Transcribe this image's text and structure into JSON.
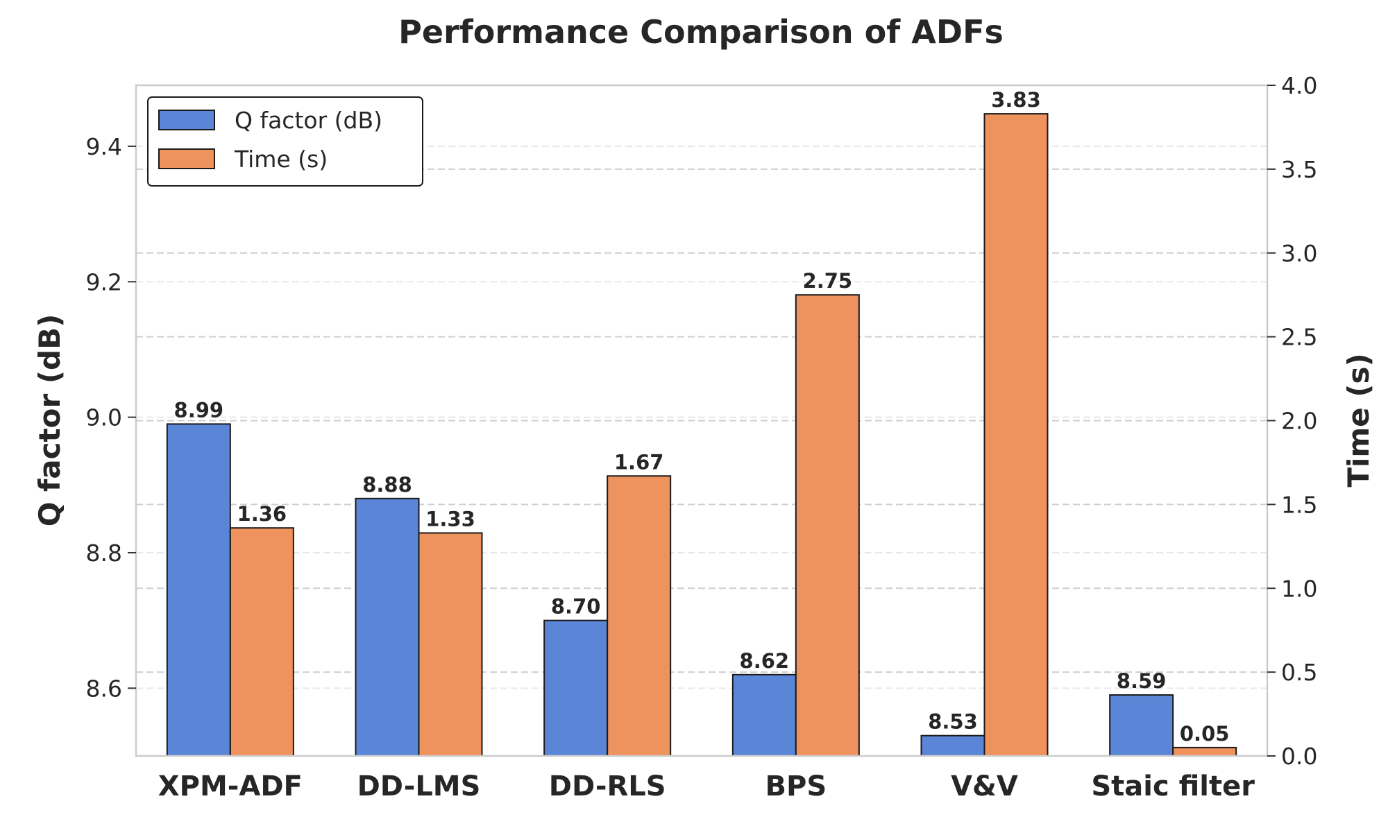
{
  "chart_data": {
    "type": "bar",
    "title": "Performance Comparison of ADFs",
    "categories": [
      "XPM-ADF",
      "DD-LMS",
      "DD-RLS",
      "BPS",
      "V&V",
      "Staic filter"
    ],
    "series": [
      {
        "name": "Q factor (dB)",
        "axis": "left",
        "color": "#5b85d6",
        "values": [
          8.99,
          8.88,
          8.7,
          8.62,
          8.53,
          8.59
        ],
        "labels": [
          "8.99",
          "8.88",
          "8.70",
          "8.62",
          "8.53",
          "8.59"
        ]
      },
      {
        "name": "Time (s)",
        "axis": "right",
        "color": "#ee925e",
        "values": [
          1.36,
          1.33,
          1.67,
          2.75,
          3.83,
          0.05
        ],
        "labels": [
          "1.36",
          "1.33",
          "1.67",
          "2.75",
          "3.83",
          "0.05"
        ]
      }
    ],
    "y_left": {
      "label": "Q factor (dB)",
      "lim": [
        8.5,
        9.49
      ],
      "ticks": [
        8.6,
        8.8,
        9.0,
        9.2,
        9.4
      ],
      "tick_labels": [
        "8.6",
        "8.8",
        "9.0",
        "9.2",
        "9.4"
      ]
    },
    "y_right": {
      "label": "Time (s)",
      "lim": [
        0.0,
        4.0
      ],
      "ticks": [
        0.0,
        0.5,
        1.0,
        1.5,
        2.0,
        2.5,
        3.0,
        3.5,
        4.0
      ],
      "tick_labels": [
        "0.0",
        "0.5",
        "1.0",
        "1.5",
        "2.0",
        "2.5",
        "3.0",
        "3.5",
        "4.0"
      ]
    },
    "grid": true,
    "legend_position": "top-left",
    "edge_color": "#1a1a1a",
    "grid_color": "#cfcfcf",
    "frame_color": "#cccccc"
  }
}
